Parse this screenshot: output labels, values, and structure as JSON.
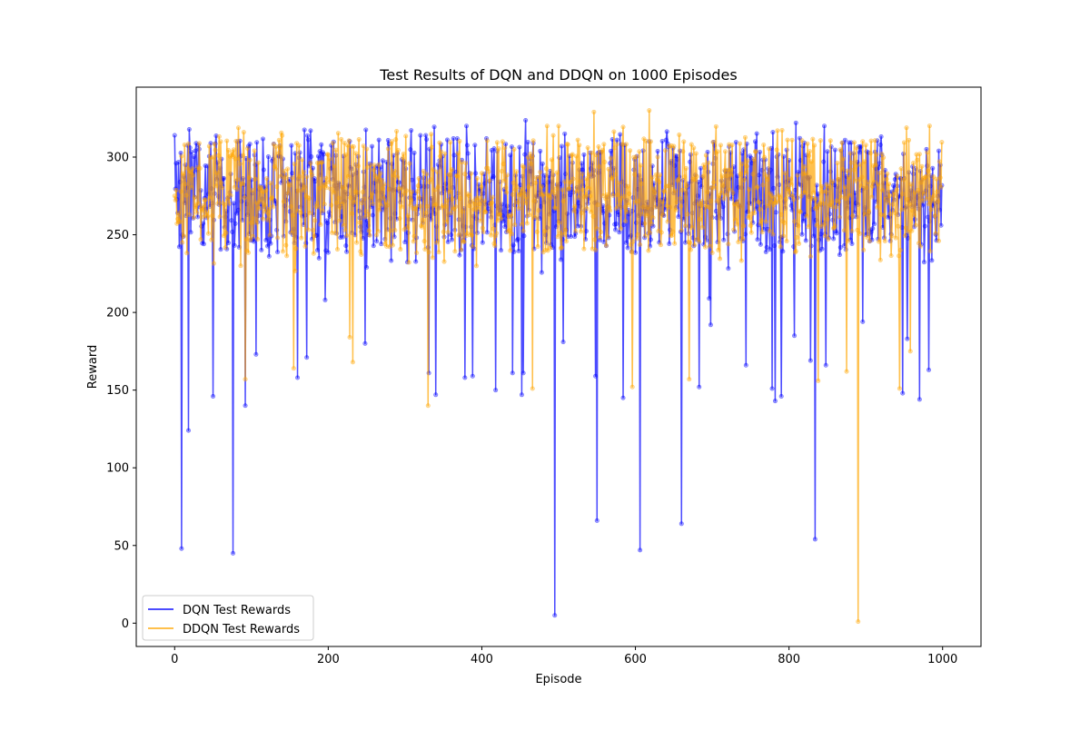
{
  "chart_data": {
    "type": "line",
    "title": "Test Results of DQN and DDQN on 1000 Episodes",
    "xlabel": "Episode",
    "ylabel": "Reward",
    "xlim": [
      -50,
      1050
    ],
    "ylim": [
      -15,
      345
    ],
    "xticks": [
      0,
      200,
      400,
      600,
      800,
      1000
    ],
    "yticks": [
      0,
      50,
      100,
      150,
      200,
      250,
      300
    ],
    "grid": false,
    "legend_position": "lower-left",
    "n_episodes": 1000,
    "series": [
      {
        "name": "DQN Test Rewards",
        "color": "#0000ff",
        "marker": "circle",
        "typical_range": [
          250,
          300
        ],
        "notable_points": [
          {
            "x": 0,
            "y": 314
          },
          {
            "x": 2,
            "y": 296
          },
          {
            "x": 9,
            "y": 48
          },
          {
            "x": 14,
            "y": 295
          },
          {
            "x": 18,
            "y": 124
          },
          {
            "x": 20,
            "y": 306
          },
          {
            "x": 50,
            "y": 146
          },
          {
            "x": 76,
            "y": 45
          },
          {
            "x": 82,
            "y": 310
          },
          {
            "x": 92,
            "y": 140
          },
          {
            "x": 106,
            "y": 173
          },
          {
            "x": 160,
            "y": 158
          },
          {
            "x": 172,
            "y": 171
          },
          {
            "x": 177,
            "y": 317
          },
          {
            "x": 196,
            "y": 208
          },
          {
            "x": 248,
            "y": 180
          },
          {
            "x": 250,
            "y": 229
          },
          {
            "x": 320,
            "y": 314
          },
          {
            "x": 327,
            "y": 314
          },
          {
            "x": 331,
            "y": 161
          },
          {
            "x": 340,
            "y": 147
          },
          {
            "x": 363,
            "y": 312
          },
          {
            "x": 378,
            "y": 158
          },
          {
            "x": 380,
            "y": 320
          },
          {
            "x": 388,
            "y": 159
          },
          {
            "x": 418,
            "y": 150
          },
          {
            "x": 440,
            "y": 161
          },
          {
            "x": 452,
            "y": 147
          },
          {
            "x": 454,
            "y": 161
          },
          {
            "x": 495,
            "y": 5
          },
          {
            "x": 506,
            "y": 181
          },
          {
            "x": 508,
            "y": 315
          },
          {
            "x": 548,
            "y": 159
          },
          {
            "x": 550,
            "y": 66
          },
          {
            "x": 576,
            "y": 311
          },
          {
            "x": 584,
            "y": 145
          },
          {
            "x": 606,
            "y": 47
          },
          {
            "x": 640,
            "y": 311
          },
          {
            "x": 660,
            "y": 64
          },
          {
            "x": 683,
            "y": 152
          },
          {
            "x": 696,
            "y": 209
          },
          {
            "x": 698,
            "y": 192
          },
          {
            "x": 744,
            "y": 166
          },
          {
            "x": 756,
            "y": 310
          },
          {
            "x": 778,
            "y": 151
          },
          {
            "x": 779,
            "y": 316
          },
          {
            "x": 782,
            "y": 143
          },
          {
            "x": 790,
            "y": 146
          },
          {
            "x": 807,
            "y": 185
          },
          {
            "x": 809,
            "y": 322
          },
          {
            "x": 828,
            "y": 169
          },
          {
            "x": 834,
            "y": 54
          },
          {
            "x": 846,
            "y": 320
          },
          {
            "x": 848,
            "y": 166
          },
          {
            "x": 894,
            "y": 307
          },
          {
            "x": 896,
            "y": 194
          },
          {
            "x": 948,
            "y": 148
          },
          {
            "x": 954,
            "y": 183
          },
          {
            "x": 970,
            "y": 144
          },
          {
            "x": 982,
            "y": 163
          },
          {
            "x": 995,
            "y": 304
          },
          {
            "x": 998,
            "y": 256
          }
        ]
      },
      {
        "name": "DDQN Test Rewards",
        "color": "#ffa500",
        "marker": "circle",
        "typical_range": [
          250,
          300
        ],
        "notable_points": [
          {
            "x": 0,
            "y": 275
          },
          {
            "x": 5,
            "y": 264
          },
          {
            "x": 10,
            "y": 245
          },
          {
            "x": 45,
            "y": 307
          },
          {
            "x": 60,
            "y": 310
          },
          {
            "x": 86,
            "y": 230
          },
          {
            "x": 90,
            "y": 316
          },
          {
            "x": 92,
            "y": 157
          },
          {
            "x": 155,
            "y": 164
          },
          {
            "x": 228,
            "y": 184
          },
          {
            "x": 230,
            "y": 307
          },
          {
            "x": 232,
            "y": 168
          },
          {
            "x": 330,
            "y": 140
          },
          {
            "x": 430,
            "y": 306
          },
          {
            "x": 466,
            "y": 151
          },
          {
            "x": 485,
            "y": 320
          },
          {
            "x": 500,
            "y": 320
          },
          {
            "x": 546,
            "y": 329
          },
          {
            "x": 596,
            "y": 152
          },
          {
            "x": 618,
            "y": 330
          },
          {
            "x": 620,
            "y": 310
          },
          {
            "x": 650,
            "y": 307
          },
          {
            "x": 670,
            "y": 157
          },
          {
            "x": 785,
            "y": 317
          },
          {
            "x": 838,
            "y": 156
          },
          {
            "x": 875,
            "y": 162
          },
          {
            "x": 888,
            "y": 306
          },
          {
            "x": 890,
            "y": 1
          },
          {
            "x": 944,
            "y": 151
          },
          {
            "x": 958,
            "y": 175
          },
          {
            "x": 980,
            "y": 303
          },
          {
            "x": 995,
            "y": 246
          }
        ]
      }
    ]
  }
}
